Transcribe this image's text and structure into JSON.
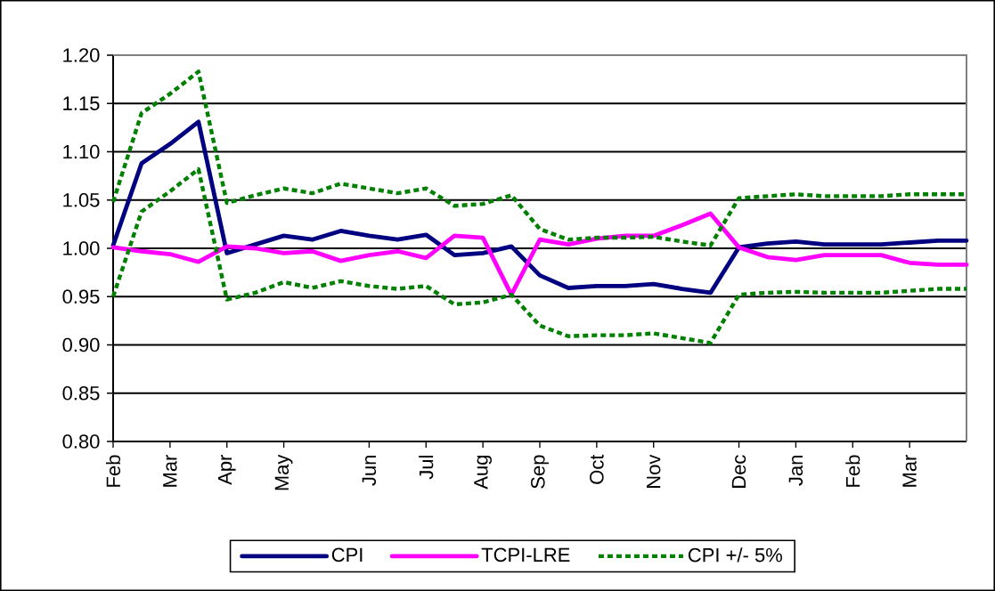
{
  "chart_data": {
    "type": "line",
    "categories": [
      "Feb",
      null,
      "Mar",
      null,
      "Apr",
      null,
      "May",
      null,
      null,
      "Jun",
      null,
      "Jul",
      null,
      "Aug",
      null,
      "Sep",
      null,
      "Oct",
      null,
      "Nov",
      null,
      null,
      "Dec",
      null,
      "Jan",
      null,
      "Feb",
      null,
      "Mar",
      null,
      null
    ],
    "series": [
      {
        "name": "CPI",
        "color": "#000080",
        "line_style": "solid",
        "values": [
          1.003,
          1.088,
          1.108,
          1.131,
          0.995,
          1.004,
          1.013,
          1.009,
          1.018,
          1.013,
          1.009,
          1.014,
          0.993,
          0.995,
          1.002,
          0.972,
          0.959,
          0.961,
          0.961,
          0.963,
          0.958,
          0.954,
          1.001,
          1.005,
          1.007,
          1.004,
          1.004,
          1.004,
          1.006,
          1.008,
          1.008
        ]
      },
      {
        "name": "TCPI-LRE",
        "color": "#ff00ff",
        "line_style": "solid",
        "values": [
          1.001,
          0.997,
          0.994,
          0.986,
          1.002,
          1.0,
          0.995,
          0.997,
          0.987,
          0.993,
          0.997,
          0.99,
          1.013,
          1.011,
          0.952,
          1.009,
          1.004,
          1.01,
          1.013,
          1.013,
          1.024,
          1.036,
          1.001,
          0.991,
          0.988,
          0.993,
          0.993,
          0.993,
          0.985,
          0.983,
          0.983
        ]
      },
      {
        "name": "CPI +/- 5%",
        "color": "#008000",
        "line_style": "dotted",
        "values": [
          1.048,
          1.14,
          1.16,
          1.183,
          1.047,
          1.055,
          1.062,
          1.057,
          1.067,
          1.062,
          1.057,
          1.062,
          1.044,
          1.046,
          1.055,
          1.02,
          1.009,
          1.011,
          1.011,
          1.012,
          1.007,
          1.003,
          1.052,
          1.054,
          1.056,
          1.054,
          1.054,
          1.054,
          1.056,
          1.056,
          1.056
        ]
      },
      {
        "color": "#008000",
        "line_style": "dotted",
        "values": [
          0.95,
          1.038,
          1.059,
          1.082,
          0.947,
          0.954,
          0.965,
          0.959,
          0.966,
          0.961,
          0.958,
          0.961,
          0.942,
          0.944,
          0.952,
          0.92,
          0.909,
          0.91,
          0.91,
          0.912,
          0.907,
          0.902,
          0.952,
          0.954,
          0.955,
          0.954,
          0.954,
          0.954,
          0.956,
          0.958,
          0.958
        ]
      }
    ],
    "ylim": [
      0.8,
      1.2
    ],
    "yticks": [
      {
        "value": 0.8,
        "label": "0.80"
      },
      {
        "value": 0.85,
        "label": "0.85"
      },
      {
        "value": 0.9,
        "label": "0.90"
      },
      {
        "value": 0.95,
        "label": "0.95"
      },
      {
        "value": 1.0,
        "label": "1.00"
      },
      {
        "value": 1.05,
        "label": "1.05"
      },
      {
        "value": 1.1,
        "label": "1.10"
      },
      {
        "value": 1.15,
        "label": "1.15"
      },
      {
        "value": 1.2,
        "label": "1.20"
      }
    ],
    "grid": "y",
    "legend": "bottom"
  }
}
